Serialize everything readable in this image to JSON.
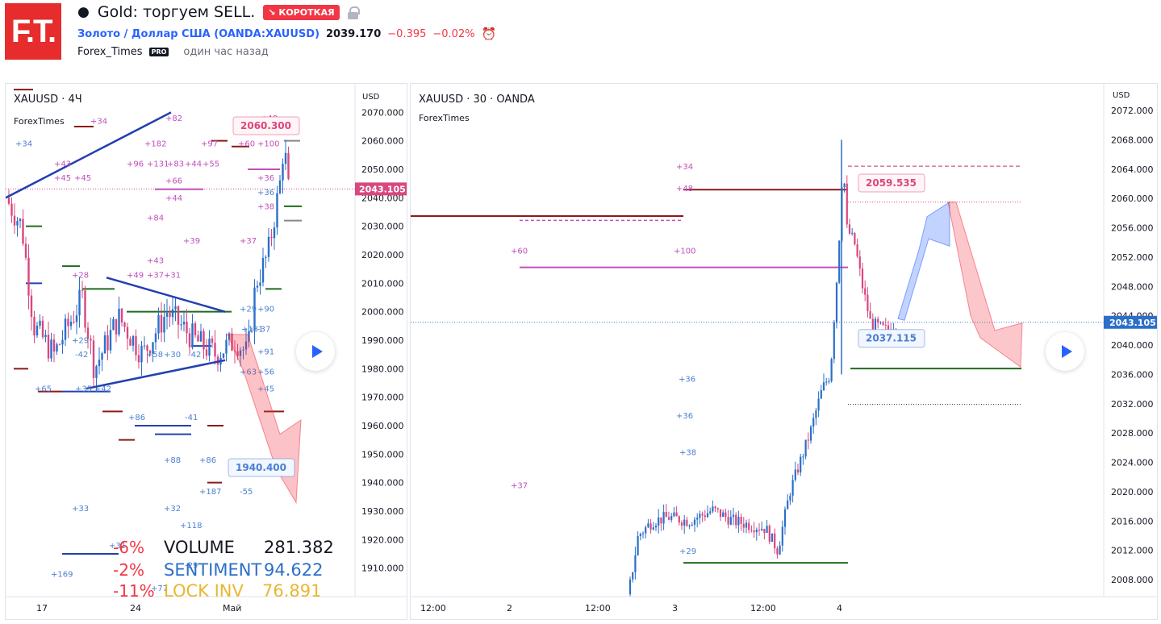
{
  "header": {
    "logo": "F.T.",
    "title": "Gold: торгуем SELL.",
    "badge": "↘ КОРОТКАЯ",
    "symbol_name": "Золото / Доллар США",
    "symbol_ticker": "OANDA:XAUUSD",
    "price": "2039.170",
    "change": "−0.395",
    "change_pct": "−0.02%",
    "author": "Forex_Times",
    "pro": "PRO",
    "time": "один час назад"
  },
  "colors": {
    "up": "#2b6fc9",
    "down": "#d9477f",
    "accent": "#e62c2c",
    "blue_line": "#2340b0",
    "label_purple": "#c04fb9",
    "label_blue": "#4a7fd0"
  },
  "chart_data": [
    {
      "type": "candlestick",
      "title": "XAUUSD · 4Ч",
      "subtitle": "ForexTimes",
      "currency": "USD",
      "y_ticks": [
        "2070.000",
        "2060.000",
        "2050.000",
        "2040.000",
        "2030.000",
        "2020.000",
        "2010.000",
        "2000.000",
        "1990.000",
        "1980.000",
        "1970.000",
        "1960.000",
        "1950.000",
        "1940.000",
        "1930.000",
        "1920.000",
        "1910.000"
      ],
      "ylim": [
        1900,
        2080
      ],
      "x_ticks": [
        "17",
        "24",
        "Май"
      ],
      "last_price": "2043.105",
      "annotations": [
        "2060.300",
        "1940.400"
      ],
      "stats": [
        {
          "pct": "-6%",
          "name": "VOLUME",
          "value": "281.382"
        },
        {
          "pct": "-2%",
          "name": "SENTIMENT",
          "value": "94.622"
        },
        {
          "pct": "-11%",
          "name": "LOCK INV",
          "value": "76.891"
        }
      ],
      "labels_purple": [
        "+71",
        "+82",
        "+182",
        "+97",
        "+48",
        "+60",
        "+100",
        "+96",
        "+131",
        "+83",
        "+44",
        "+55",
        "+66",
        "+44",
        "+84",
        "+39",
        "+37",
        "+43",
        "+43",
        "+45",
        "+45",
        "+34",
        "+49",
        "+37",
        "+31",
        "+28",
        "+36",
        "+38"
      ],
      "labels_blue": [
        "+34",
        "+36",
        "+29",
        "+90",
        "+131",
        "-37",
        "+91",
        "+63",
        "+56",
        "+45",
        "+58",
        "+30",
        "-42",
        "+29",
        "-42",
        "+65",
        "+35",
        "+42",
        "+86",
        "-41",
        "+88",
        "+86",
        "+187",
        "-55",
        "+33",
        "+32",
        "+118",
        "+31",
        "+169",
        "-29",
        "+77"
      ],
      "wedge": [
        {
          "time": "10.04",
          "price": 2040
        },
        {
          "time": "16.04",
          "price": 2070
        },
        {
          "time": "19.04",
          "price": 2012
        },
        {
          "time": "29.04",
          "price": 2000
        },
        {
          "time": "19.04",
          "price": 1973
        },
        {
          "time": "29.04",
          "price": 1983
        }
      ]
    },
    {
      "type": "candlestick",
      "title": "XAUUSD · 30 · OANDA",
      "subtitle": "ForexTimes",
      "currency": "USD",
      "y_ticks": [
        "2072.000",
        "2068.000",
        "2064.000",
        "2060.000",
        "2056.000",
        "2052.000",
        "2048.000",
        "2044.000",
        "2040.000",
        "2036.000",
        "2032.000",
        "2028.000",
        "2024.000",
        "2020.000",
        "2016.000",
        "2012.000",
        "2008.000"
      ],
      "ylim": [
        2006,
        2074
      ],
      "x_ticks": [
        "12:00",
        "2",
        "12:00",
        "3",
        "12:00",
        "4"
      ],
      "last_price": "2043.105",
      "annotations": [
        "2059.535",
        "2037.115"
      ],
      "level_labels": [
        "+34",
        "+48",
        "+60",
        "+100",
        "+36",
        "+36",
        "+38",
        "+37",
        "+29"
      ],
      "levels": [
        2061.2,
        2057.6,
        2057.0,
        2050.6,
        2059.5,
        2064.4,
        2036.8,
        2031.9,
        2010.3
      ],
      "forecast_up": {
        "from": 2043.6,
        "to": 2059.5
      },
      "forecast_down": {
        "from": 2059.5,
        "to": 2037.0
      }
    }
  ]
}
